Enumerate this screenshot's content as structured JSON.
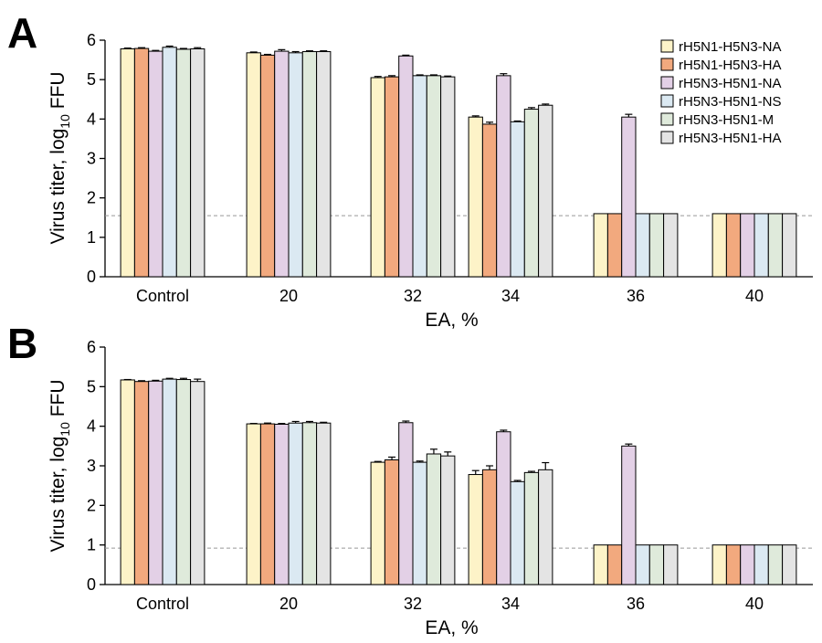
{
  "panels": [
    {
      "label": "A",
      "chart_data": {
        "type": "bar",
        "categories": [
          "Control",
          "20",
          "32",
          "34",
          "36",
          "40"
        ],
        "series": [
          {
            "name": "rH5N1-H5N3-NA",
            "values": [
              5.78,
              5.68,
              5.05,
              4.05,
              1.6,
              1.6
            ],
            "errors": [
              0.02,
              0.02,
              0.03,
              0.03,
              0,
              0
            ]
          },
          {
            "name": "rH5N1-H5N3-HA",
            "values": [
              5.79,
              5.62,
              5.07,
              3.87,
              1.6,
              1.6
            ],
            "errors": [
              0.02,
              0.02,
              0.03,
              0.05,
              0,
              0
            ]
          },
          {
            "name": "rH5N3-H5N1-NA",
            "values": [
              5.72,
              5.72,
              5.6,
              5.1,
              4.05,
              1.6
            ],
            "errors": [
              0.02,
              0.04,
              0.02,
              0.05,
              0.07,
              0
            ]
          },
          {
            "name": "rH5N3-H5N1-NS",
            "values": [
              5.82,
              5.68,
              5.1,
              3.93,
              1.6,
              1.6
            ],
            "errors": [
              0.03,
              0.03,
              0.02,
              0.02,
              0,
              0
            ]
          },
          {
            "name": "rH5N3-H5N1-M",
            "values": [
              5.77,
              5.71,
              5.1,
              4.25,
              1.6,
              1.6
            ],
            "errors": [
              0.02,
              0.02,
              0.02,
              0.04,
              0,
              0
            ]
          },
          {
            "name": "rH5N3-H5N1-HA",
            "values": [
              5.78,
              5.71,
              5.07,
              4.35,
              1.6,
              1.6
            ],
            "errors": [
              0.03,
              0.02,
              0.02,
              0.03,
              0,
              0
            ]
          }
        ],
        "xlabel": "EA, %",
        "ylabel_main": "Virus titer, log",
        "ylabel_sub": "10",
        "ylabel_end": " FFU",
        "ylim": [
          0,
          6
        ],
        "yticks": [
          "0",
          "1",
          "2",
          "3",
          "4",
          "5",
          "6"
        ],
        "detection_limit": 1.55,
        "legend": "top-right"
      }
    },
    {
      "label": "B",
      "chart_data": {
        "type": "bar",
        "categories": [
          "Control",
          "20",
          "32",
          "34",
          "36",
          "40"
        ],
        "series": [
          {
            "name": "rH5N1-H5N3-NA",
            "values": [
              5.17,
              4.06,
              3.09,
              2.78,
              1.0,
              1.0
            ],
            "errors": [
              0.01,
              0.01,
              0.02,
              0.1,
              0,
              0
            ]
          },
          {
            "name": "rH5N1-H5N3-HA",
            "values": [
              5.13,
              4.06,
              3.15,
              2.9,
              1.0,
              1.0
            ],
            "errors": [
              0.02,
              0.02,
              0.07,
              0.1,
              0,
              0
            ]
          },
          {
            "name": "rH5N3-H5N1-NA",
            "values": [
              5.14,
              4.05,
              4.09,
              3.86,
              3.5,
              1.0
            ],
            "errors": [
              0.02,
              0.02,
              0.04,
              0.04,
              0.05,
              0
            ]
          },
          {
            "name": "rH5N3-H5N1-NS",
            "values": [
              5.19,
              4.08,
              3.09,
              2.6,
              1.0,
              1.0
            ],
            "errors": [
              0.02,
              0.04,
              0.03,
              0.03,
              0,
              0
            ]
          },
          {
            "name": "rH5N3-H5N1-M",
            "values": [
              5.18,
              4.09,
              3.3,
              2.83,
              1.0,
              1.0
            ],
            "errors": [
              0.03,
              0.03,
              0.12,
              0.03,
              0,
              0
            ]
          },
          {
            "name": "rH5N3-H5N1-HA",
            "values": [
              5.13,
              4.08,
              3.25,
              2.9,
              1.0,
              1.0
            ],
            "errors": [
              0.06,
              0.02,
              0.1,
              0.18,
              0,
              0
            ]
          }
        ],
        "xlabel": "EA, %",
        "ylabel_main": "Virus titer, log",
        "ylabel_sub": "10",
        "ylabel_end": " FFU",
        "ylim": [
          0,
          6
        ],
        "yticks": [
          "0",
          "1",
          "2",
          "3",
          "4",
          "5",
          "6"
        ],
        "detection_limit": 0.92,
        "legend": "none"
      }
    }
  ],
  "colors": [
    "#fdf3c8",
    "#f2a97e",
    "#e3d0e6",
    "#dbe9f2",
    "#dfeadb",
    "#e4e4e4"
  ]
}
